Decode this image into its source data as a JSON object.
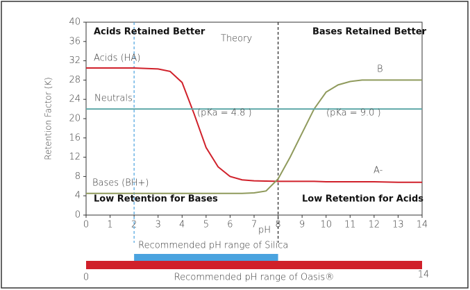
{
  "chart_data": {
    "type": "line",
    "ylabel": "Retention Factor (K)",
    "xlabel": "pH",
    "xlim": [
      0,
      14
    ],
    "xticks": [
      0,
      1,
      2,
      3,
      4,
      5,
      6,
      7,
      8,
      9,
      10,
      11,
      12,
      13,
      14
    ],
    "ylim": [
      0,
      40
    ],
    "yticks": [
      0,
      4,
      8,
      12,
      16,
      20,
      24,
      28,
      32,
      36,
      40
    ],
    "series": [
      {
        "name": "Acids (HA)",
        "color": "#d0202a",
        "x": [
          0,
          1,
          2,
          3,
          3.5,
          4,
          4.5,
          5,
          5.5,
          6,
          6.5,
          7,
          7.5,
          8,
          8.5,
          9,
          9.5,
          10,
          10.5,
          11,
          11.5,
          12,
          13,
          14
        ],
        "values": [
          30.5,
          30.5,
          30.5,
          30.3,
          29.8,
          27.5,
          21,
          14,
          10,
          8,
          7.3,
          7.1,
          7.05,
          7,
          7,
          7,
          7,
          6.9,
          6.9,
          6.9,
          6.9,
          6.9,
          6.8,
          6.8
        ]
      },
      {
        "name": "Bases (BH+)",
        "color": "#8f9a5c",
        "x": [
          0,
          1,
          2,
          3,
          3.5,
          4,
          4.5,
          5,
          5.5,
          6,
          6.5,
          7,
          7.5,
          8,
          8.5,
          9,
          9.5,
          10,
          10.5,
          11,
          11.5,
          12,
          13,
          14
        ],
        "values": [
          4.5,
          4.5,
          4.5,
          4.5,
          4.5,
          4.5,
          4.5,
          4.5,
          4.5,
          4.5,
          4.5,
          4.6,
          5,
          7.5,
          12,
          17,
          22,
          25.5,
          27,
          27.7,
          28,
          28,
          28,
          28
        ]
      },
      {
        "name": "Neutrals",
        "color": "#5fa8a8",
        "x": [
          0,
          14
        ],
        "values": [
          22,
          22
        ]
      }
    ],
    "annotations": [
      "Acids Retained Better",
      "Theory",
      "Bases Retained Better",
      "(pKa = 4.8 )",
      "(pKa = 9.0 )",
      "B",
      "A-",
      "Low Retention for Bases",
      "Low Retention for Acids"
    ],
    "vlines": [
      {
        "x": 2,
        "color": "#4aa3df"
      },
      {
        "x": 8,
        "color": "#222222"
      }
    ],
    "ranges": [
      {
        "label": "Recommended pH range of Silica",
        "from": 2,
        "to": 8,
        "color": "#4aa3df"
      },
      {
        "label": "Recommended pH range of Oasis®",
        "from": 0,
        "to": 14,
        "color": "#d0202a"
      }
    ]
  }
}
